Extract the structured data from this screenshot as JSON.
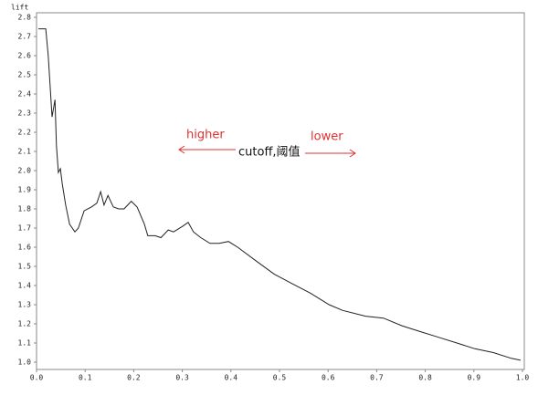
{
  "chart_data": {
    "type": "line",
    "y_label": "lift",
    "annotations": [
      "higher",
      "lower",
      "cutoff,阈值"
    ],
    "x": [
      0.004,
      0.019,
      0.024,
      0.032,
      0.038,
      0.041,
      0.045,
      0.049,
      0.053,
      0.06,
      0.068,
      0.079,
      0.086,
      0.098,
      0.113,
      0.124,
      0.132,
      0.139,
      0.147,
      0.158,
      0.169,
      0.18,
      0.195,
      0.207,
      0.222,
      0.229,
      0.244,
      0.256,
      0.271,
      0.282,
      0.301,
      0.312,
      0.323,
      0.338,
      0.357,
      0.376,
      0.395,
      0.414,
      0.451,
      0.489,
      0.526,
      0.564,
      0.602,
      0.63,
      0.677,
      0.714,
      0.752,
      0.789,
      0.827,
      0.865,
      0.902,
      0.94,
      0.977,
      0.996
    ],
    "series": [
      {
        "color": "#222222",
        "values": [
          2.74,
          2.74,
          2.6,
          2.28,
          2.37,
          2.13,
          1.99,
          2.01,
          1.93,
          1.82,
          1.72,
          1.68,
          1.7,
          1.79,
          1.81,
          1.83,
          1.89,
          1.82,
          1.87,
          1.81,
          1.8,
          1.8,
          1.84,
          1.81,
          1.72,
          1.66,
          1.66,
          1.65,
          1.69,
          1.68,
          1.71,
          1.73,
          1.68,
          1.65,
          1.62,
          1.62,
          1.63,
          1.6,
          1.53,
          1.46,
          1.41,
          1.36,
          1.3,
          1.27,
          1.24,
          1.23,
          1.19,
          1.16,
          1.13,
          1.1,
          1.07,
          1.05,
          1.02,
          1.01
        ]
      }
    ],
    "xlim": [
      0,
      1
    ],
    "ylim": [
      1,
      2.8
    ],
    "xticks": [
      {
        "value": 0,
        "label": "0.0"
      },
      0.1,
      0.2,
      0.3,
      0.4,
      0.5,
      0.6,
      0.7,
      0.8,
      0.9,
      {
        "value": 1,
        "label": "1.0"
      }
    ],
    "yticks": [
      {
        "value": 1,
        "label": "1.0"
      },
      1.1,
      1.2,
      1.3,
      1.4,
      1.5,
      1.6,
      1.7,
      1.8,
      1.9,
      {
        "value": 2,
        "label": "2.0"
      },
      2.1,
      2.2,
      2.3,
      2.4,
      2.5,
      2.6,
      2.7,
      2.8
    ]
  }
}
